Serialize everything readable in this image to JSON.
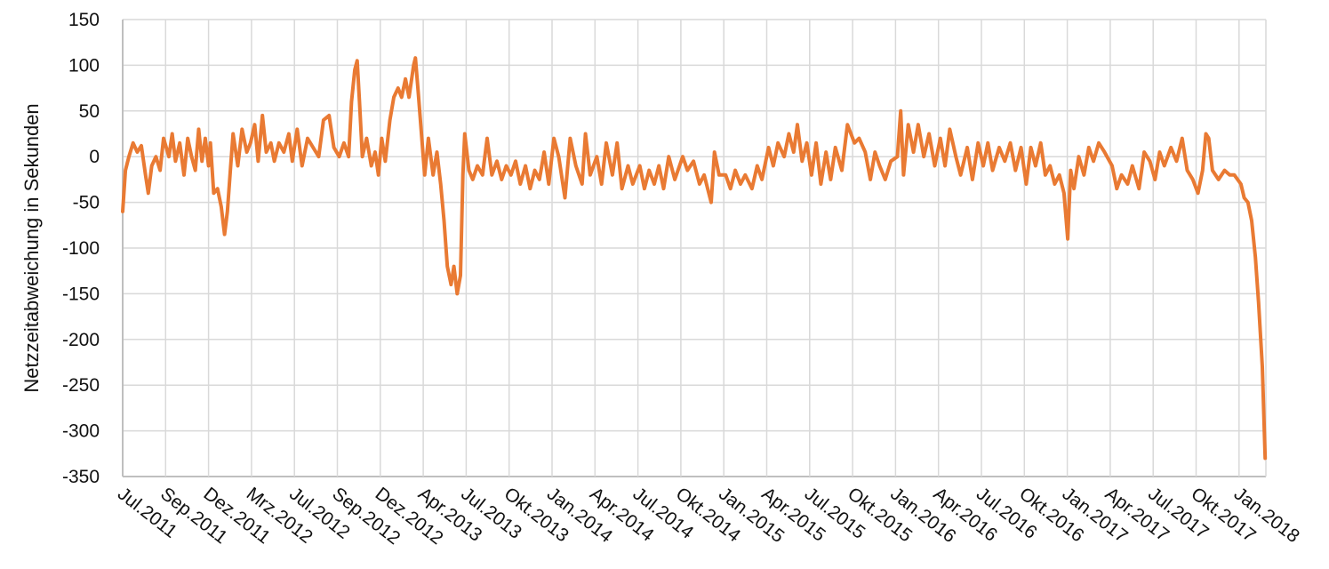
{
  "chart_data": {
    "type": "line",
    "title": "",
    "xlabel": "",
    "ylabel": "Netzzeitabweichung in Sekunden",
    "ylim": [
      -350,
      150
    ],
    "yticks": [
      150,
      100,
      50,
      0,
      -50,
      -100,
      -150,
      -200,
      -250,
      -300,
      -350
    ],
    "grid": true,
    "legend": "none",
    "line_color": "#E97A33",
    "grid_color": "#D9D9D9",
    "xtick_labels": [
      "Jul.2011",
      "Sep.2011",
      "Dez.2011",
      "Mrz.2012",
      "Jul.2012",
      "Sep.2012",
      "Dez.2012",
      "Apr.2013",
      "Jul.2013",
      "Okt.2013",
      "Jan.2014",
      "Apr.2014",
      "Jul.2014",
      "Okt.2014",
      "Jan.2015",
      "Apr.2015",
      "Jul.2015",
      "Okt.2015",
      "Jan.2016",
      "Apr.2016",
      "Jul.2016",
      "Okt.2016",
      "Jan.2017",
      "Apr.2017",
      "Jul.2017",
      "Okt.2017",
      "Jan.2018"
    ],
    "xtick_dates": [
      "2011-07-01",
      "2011-09-01",
      "2011-12-01",
      "2012-03-01",
      "2012-07-01",
      "2012-09-01",
      "2012-12-01",
      "2013-04-01",
      "2013-07-01",
      "2013-10-01",
      "2014-01-01",
      "2014-04-01",
      "2014-07-01",
      "2014-10-01",
      "2015-01-01",
      "2015-04-01",
      "2015-07-01",
      "2015-10-01",
      "2016-01-01",
      "2016-04-01",
      "2016-07-01",
      "2016-10-01",
      "2017-01-01",
      "2017-04-01",
      "2017-07-01",
      "2017-10-01",
      "2018-01-01"
    ],
    "series": [
      {
        "points": [
          [
            "2011-07-01",
            -60
          ],
          [
            "2011-07-05",
            -15
          ],
          [
            "2011-07-10",
            0
          ],
          [
            "2011-07-16",
            15
          ],
          [
            "2011-07-22",
            5
          ],
          [
            "2011-07-28",
            12
          ],
          [
            "2011-08-03",
            -20
          ],
          [
            "2011-08-07",
            -40
          ],
          [
            "2011-08-12",
            -10
          ],
          [
            "2011-08-18",
            0
          ],
          [
            "2011-08-24",
            -15
          ],
          [
            "2011-08-29",
            20
          ],
          [
            "2011-09-08",
            0
          ],
          [
            "2011-09-15",
            25
          ],
          [
            "2011-09-22",
            -5
          ],
          [
            "2011-10-01",
            15
          ],
          [
            "2011-10-10",
            -20
          ],
          [
            "2011-10-18",
            20
          ],
          [
            "2011-10-26",
            0
          ],
          [
            "2011-11-03",
            -15
          ],
          [
            "2011-11-10",
            30
          ],
          [
            "2011-11-17",
            -5
          ],
          [
            "2011-11-24",
            20
          ],
          [
            "2011-12-01",
            -10
          ],
          [
            "2011-12-05",
            15
          ],
          [
            "2011-12-12",
            -40
          ],
          [
            "2011-12-20",
            -35
          ],
          [
            "2011-12-28",
            -55
          ],
          [
            "2012-01-04",
            -85
          ],
          [
            "2012-01-10",
            -60
          ],
          [
            "2012-01-17",
            -10
          ],
          [
            "2012-01-22",
            25
          ],
          [
            "2012-02-01",
            -10
          ],
          [
            "2012-02-10",
            30
          ],
          [
            "2012-02-20",
            5
          ],
          [
            "2012-02-28",
            15
          ],
          [
            "2012-03-10",
            35
          ],
          [
            "2012-03-20",
            -5
          ],
          [
            "2012-04-01",
            45
          ],
          [
            "2012-04-12",
            5
          ],
          [
            "2012-04-25",
            15
          ],
          [
            "2012-05-05",
            -5
          ],
          [
            "2012-05-18",
            15
          ],
          [
            "2012-06-01",
            5
          ],
          [
            "2012-06-15",
            25
          ],
          [
            "2012-06-25",
            -5
          ],
          [
            "2012-07-05",
            30
          ],
          [
            "2012-07-12",
            -10
          ],
          [
            "2012-07-20",
            20
          ],
          [
            "2012-07-28",
            10
          ],
          [
            "2012-08-05",
            0
          ],
          [
            "2012-08-12",
            40
          ],
          [
            "2012-08-20",
            45
          ],
          [
            "2012-08-27",
            10
          ],
          [
            "2012-09-05",
            0
          ],
          [
            "2012-09-15",
            15
          ],
          [
            "2012-09-25",
            0
          ],
          [
            "2012-10-01",
            60
          ],
          [
            "2012-10-08",
            95
          ],
          [
            "2012-10-13",
            105
          ],
          [
            "2012-10-18",
            60
          ],
          [
            "2012-10-24",
            0
          ],
          [
            "2012-11-02",
            20
          ],
          [
            "2012-11-12",
            -10
          ],
          [
            "2012-11-20",
            5
          ],
          [
            "2012-11-27",
            -20
          ],
          [
            "2012-12-05",
            20
          ],
          [
            "2012-12-15",
            -5
          ],
          [
            "2012-12-28",
            40
          ],
          [
            "2013-01-08",
            65
          ],
          [
            "2013-01-20",
            75
          ],
          [
            "2013-01-30",
            65
          ],
          [
            "2013-02-10",
            85
          ],
          [
            "2013-02-20",
            65
          ],
          [
            "2013-03-05",
            100
          ],
          [
            "2013-03-10",
            108
          ],
          [
            "2013-03-18",
            70
          ],
          [
            "2013-03-26",
            30
          ],
          [
            "2013-04-04",
            -20
          ],
          [
            "2013-04-12",
            20
          ],
          [
            "2013-04-22",
            -20
          ],
          [
            "2013-04-30",
            5
          ],
          [
            "2013-05-08",
            -30
          ],
          [
            "2013-05-15",
            -70
          ],
          [
            "2013-05-22",
            -120
          ],
          [
            "2013-05-30",
            -140
          ],
          [
            "2013-06-05",
            -120
          ],
          [
            "2013-06-12",
            -150
          ],
          [
            "2013-06-19",
            -130
          ],
          [
            "2013-06-24",
            -20
          ],
          [
            "2013-06-28",
            25
          ],
          [
            "2013-07-07",
            -15
          ],
          [
            "2013-07-15",
            -25
          ],
          [
            "2013-07-25",
            -10
          ],
          [
            "2013-08-05",
            -20
          ],
          [
            "2013-08-15",
            20
          ],
          [
            "2013-08-25",
            -20
          ],
          [
            "2013-09-05",
            -5
          ],
          [
            "2013-09-15",
            -25
          ],
          [
            "2013-09-25",
            -10
          ],
          [
            "2013-10-05",
            -20
          ],
          [
            "2013-10-15",
            -5
          ],
          [
            "2013-10-25",
            -30
          ],
          [
            "2013-11-05",
            -10
          ],
          [
            "2013-11-15",
            -35
          ],
          [
            "2013-11-25",
            -15
          ],
          [
            "2013-12-05",
            -25
          ],
          [
            "2013-12-15",
            5
          ],
          [
            "2013-12-25",
            -30
          ],
          [
            "2014-01-05",
            20
          ],
          [
            "2014-01-15",
            0
          ],
          [
            "2014-01-28",
            -45
          ],
          [
            "2014-02-08",
            20
          ],
          [
            "2014-02-20",
            -10
          ],
          [
            "2014-03-05",
            -30
          ],
          [
            "2014-03-12",
            25
          ],
          [
            "2014-03-22",
            -20
          ],
          [
            "2014-04-05",
            0
          ],
          [
            "2014-04-15",
            -30
          ],
          [
            "2014-04-25",
            15
          ],
          [
            "2014-05-08",
            -20
          ],
          [
            "2014-05-18",
            15
          ],
          [
            "2014-05-28",
            -35
          ],
          [
            "2014-06-10",
            -10
          ],
          [
            "2014-06-20",
            -30
          ],
          [
            "2014-07-05",
            -10
          ],
          [
            "2014-07-15",
            -35
          ],
          [
            "2014-07-25",
            -15
          ],
          [
            "2014-08-05",
            -30
          ],
          [
            "2014-08-15",
            -10
          ],
          [
            "2014-08-25",
            -35
          ],
          [
            "2014-09-05",
            0
          ],
          [
            "2014-09-18",
            -25
          ],
          [
            "2014-10-05",
            0
          ],
          [
            "2014-10-15",
            -15
          ],
          [
            "2014-10-28",
            -5
          ],
          [
            "2014-11-10",
            -30
          ],
          [
            "2014-11-20",
            -20
          ],
          [
            "2014-12-05",
            -50
          ],
          [
            "2014-12-12",
            5
          ],
          [
            "2014-12-22",
            -20
          ],
          [
            "2015-01-05",
            -20
          ],
          [
            "2015-01-15",
            -35
          ],
          [
            "2015-01-25",
            -15
          ],
          [
            "2015-02-05",
            -30
          ],
          [
            "2015-02-15",
            -20
          ],
          [
            "2015-03-01",
            -35
          ],
          [
            "2015-03-12",
            -10
          ],
          [
            "2015-03-22",
            -25
          ],
          [
            "2015-04-05",
            10
          ],
          [
            "2015-04-15",
            -10
          ],
          [
            "2015-04-25",
            15
          ],
          [
            "2015-05-08",
            0
          ],
          [
            "2015-05-18",
            25
          ],
          [
            "2015-05-28",
            5
          ],
          [
            "2015-06-05",
            35
          ],
          [
            "2015-06-15",
            -5
          ],
          [
            "2015-06-25",
            15
          ],
          [
            "2015-07-05",
            -20
          ],
          [
            "2015-07-15",
            15
          ],
          [
            "2015-07-25",
            -30
          ],
          [
            "2015-08-05",
            5
          ],
          [
            "2015-08-15",
            -25
          ],
          [
            "2015-08-25",
            10
          ],
          [
            "2015-09-08",
            -15
          ],
          [
            "2015-09-20",
            35
          ],
          [
            "2015-10-05",
            15
          ],
          [
            "2015-10-15",
            20
          ],
          [
            "2015-10-28",
            5
          ],
          [
            "2015-11-08",
            -25
          ],
          [
            "2015-11-18",
            5
          ],
          [
            "2015-11-28",
            -10
          ],
          [
            "2015-12-10",
            -25
          ],
          [
            "2015-12-22",
            -5
          ],
          [
            "2016-01-05",
            0
          ],
          [
            "2016-01-12",
            50
          ],
          [
            "2016-01-18",
            -20
          ],
          [
            "2016-01-28",
            35
          ],
          [
            "2016-02-08",
            5
          ],
          [
            "2016-02-18",
            35
          ],
          [
            "2016-03-01",
            0
          ],
          [
            "2016-03-12",
            25
          ],
          [
            "2016-03-24",
            -10
          ],
          [
            "2016-04-05",
            20
          ],
          [
            "2016-04-15",
            -10
          ],
          [
            "2016-04-25",
            30
          ],
          [
            "2016-05-08",
            0
          ],
          [
            "2016-05-18",
            -20
          ],
          [
            "2016-06-01",
            10
          ],
          [
            "2016-06-12",
            -25
          ],
          [
            "2016-06-24",
            15
          ],
          [
            "2016-07-05",
            -10
          ],
          [
            "2016-07-15",
            15
          ],
          [
            "2016-07-25",
            -15
          ],
          [
            "2016-08-08",
            10
          ],
          [
            "2016-08-20",
            -5
          ],
          [
            "2016-09-01",
            15
          ],
          [
            "2016-09-12",
            -15
          ],
          [
            "2016-09-24",
            10
          ],
          [
            "2016-10-05",
            -30
          ],
          [
            "2016-10-15",
            10
          ],
          [
            "2016-10-25",
            -10
          ],
          [
            "2016-11-05",
            15
          ],
          [
            "2016-11-15",
            -20
          ],
          [
            "2016-11-25",
            -10
          ],
          [
            "2016-12-05",
            -30
          ],
          [
            "2016-12-15",
            -20
          ],
          [
            "2016-12-25",
            -40
          ],
          [
            "2017-01-02",
            -90
          ],
          [
            "2017-01-08",
            -15
          ],
          [
            "2017-01-15",
            -35
          ],
          [
            "2017-01-25",
            0
          ],
          [
            "2017-02-05",
            -20
          ],
          [
            "2017-02-15",
            10
          ],
          [
            "2017-02-25",
            -5
          ],
          [
            "2017-03-08",
            15
          ],
          [
            "2017-03-20",
            5
          ],
          [
            "2017-04-05",
            -10
          ],
          [
            "2017-04-15",
            -35
          ],
          [
            "2017-04-25",
            -20
          ],
          [
            "2017-05-08",
            -30
          ],
          [
            "2017-05-18",
            -10
          ],
          [
            "2017-06-01",
            -35
          ],
          [
            "2017-06-12",
            5
          ],
          [
            "2017-06-24",
            -5
          ],
          [
            "2017-07-05",
            -25
          ],
          [
            "2017-07-15",
            5
          ],
          [
            "2017-07-25",
            -10
          ],
          [
            "2017-08-08",
            10
          ],
          [
            "2017-08-20",
            -5
          ],
          [
            "2017-09-01",
            20
          ],
          [
            "2017-09-12",
            -15
          ],
          [
            "2017-09-24",
            -25
          ],
          [
            "2017-10-05",
            -40
          ],
          [
            "2017-10-15",
            -15
          ],
          [
            "2017-10-22",
            25
          ],
          [
            "2017-10-28",
            20
          ],
          [
            "2017-11-05",
            -15
          ],
          [
            "2017-11-18",
            -25
          ],
          [
            "2017-12-01",
            -15
          ],
          [
            "2017-12-12",
            -20
          ],
          [
            "2017-12-22",
            -20
          ],
          [
            "2018-01-05",
            -30
          ],
          [
            "2018-01-12",
            -45
          ],
          [
            "2018-01-20",
            -50
          ],
          [
            "2018-01-28",
            -70
          ],
          [
            "2018-02-05",
            -110
          ],
          [
            "2018-02-12",
            -160
          ],
          [
            "2018-02-20",
            -230
          ],
          [
            "2018-02-26",
            -330
          ]
        ]
      }
    ]
  }
}
